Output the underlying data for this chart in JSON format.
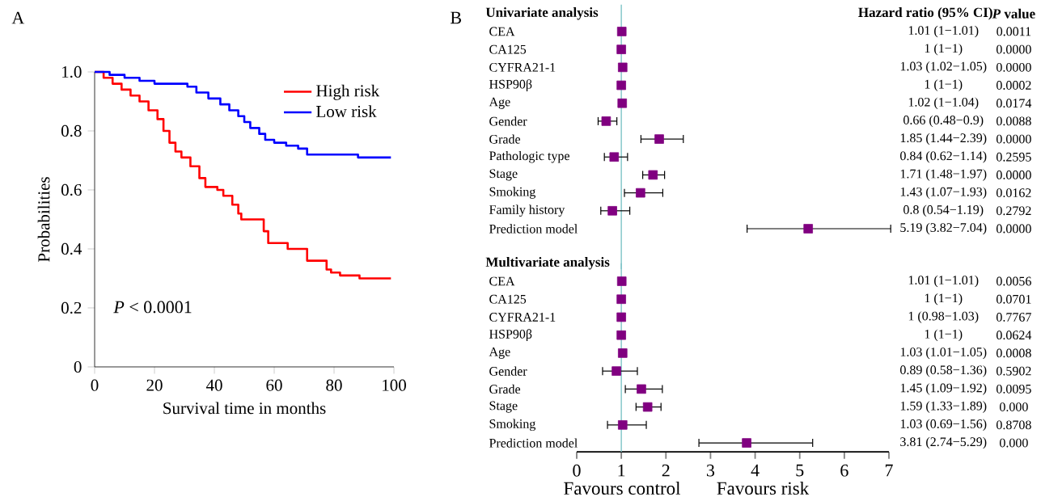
{
  "chart_data": [
    {
      "type": "step",
      "xlabel": "Survival time in months",
      "ylabel": "Probabilities",
      "legend": "top right",
      "marker": "none",
      "line_style": "solid",
      "xlim": [
        0,
        100
      ],
      "ylim": [
        0,
        1
      ],
      "xticks": [
        0,
        20,
        40,
        60,
        80,
        100
      ],
      "yticks": [
        0,
        0.2,
        0.4,
        0.6,
        0.8,
        {
          "value": 1,
          "label": "1.0"
        }
      ],
      "annotations": [
        "A",
        "*P* < 0.0001"
      ],
      "series": [
        {
          "name": "High risk",
          "color": "#ff0000",
          "x": [
            0,
            3,
            6,
            9,
            12,
            15,
            18,
            21,
            23,
            25,
            27,
            29,
            32,
            35,
            37,
            41,
            43,
            46,
            48,
            49,
            56.5,
            58,
            64.5,
            71,
            77.5,
            79,
            82,
            88.5,
            99
          ],
          "values": [
            1.0,
            0.98,
            0.96,
            0.94,
            0.92,
            0.9,
            0.87,
            0.84,
            0.8,
            0.76,
            0.73,
            0.71,
            0.68,
            0.64,
            0.61,
            0.6,
            0.58,
            0.55,
            0.52,
            0.5,
            0.46,
            0.42,
            0.4,
            0.36,
            0.33,
            0.32,
            0.31,
            0.3,
            0.3
          ]
        },
        {
          "name": "Low risk",
          "color": "#0000ff",
          "x": [
            0,
            5,
            10,
            15,
            20,
            31,
            34,
            38,
            42,
            45,
            48,
            50,
            52,
            55,
            57,
            60,
            64,
            68,
            71,
            88,
            99
          ],
          "values": [
            1.0,
            0.99,
            0.98,
            0.97,
            0.96,
            0.95,
            0.93,
            0.91,
            0.89,
            0.87,
            0.85,
            0.83,
            0.81,
            0.79,
            0.77,
            0.76,
            0.75,
            0.74,
            0.72,
            0.71,
            0.71
          ]
        }
      ]
    },
    {
      "type": "scatter",
      "orientation": "horizontal",
      "title": "Univariate analysis",
      "marker": "square",
      "color": "#800080",
      "xlim": [
        0,
        7
      ],
      "xticks": [
        0,
        1,
        2,
        3,
        4,
        5,
        6,
        7
      ],
      "tick_labels": "y",
      "categories": [
        "CEA",
        "CA125",
        "CYFRA21-1",
        "HSP90β",
        "Age",
        "Gender",
        "Grade",
        "Pathologic type",
        "Stage",
        "Smoking",
        "Family history",
        "Prediction model"
      ],
      "values": [
        1.01,
        1,
        1.03,
        1,
        1.02,
        0.66,
        1.85,
        0.84,
        1.71,
        1.43,
        0.8,
        5.19
      ],
      "errors": [
        null,
        null,
        null,
        null,
        null,
        [
          0.48,
          0.9
        ],
        [
          1.44,
          2.39
        ],
        [
          0.62,
          1.14
        ],
        [
          1.48,
          1.97
        ],
        [
          1.07,
          1.93
        ],
        [
          0.54,
          1.19
        ],
        [
          3.82,
          7.04
        ]
      ],
      "ref_lines": [
        {
          "axis": "x",
          "value": 1,
          "color": "#7fc4c8"
        }
      ],
      "annotations": [
        "B",
        "Hazard ratio (95% CI)",
        "*P* value",
        "1.01 (1−1.01)",
        "1 (1−1)",
        "1.03 (1.02−1.05)",
        "1 (1−1)",
        "1.02 (1−1.04)",
        "0.66 (0.48−0.9)",
        "1.85 (1.44−2.39)",
        "0.84 (0.62−1.14)",
        "1.71 (1.48−1.97)",
        "1.43 (1.07−1.93)",
        "0.8 (0.54−1.19)",
        "5.19 (3.82−7.04)",
        "0.0011",
        "0.0000",
        "0.0000",
        "0.0002",
        "0.0174",
        "0.0088",
        "0.0000",
        "0.2595",
        "0.0000",
        "0.0162",
        "0.2792",
        "0.0000"
      ]
    },
    {
      "type": "scatter",
      "orientation": "horizontal",
      "title": "Multivariate analysis",
      "marker": "square",
      "color": "#800080",
      "xlim": [
        0,
        7
      ],
      "xticks": [
        0,
        1,
        2,
        3,
        4,
        5,
        6,
        7
      ],
      "categories": [
        "CEA",
        "CA125",
        "CYFRA21-1",
        "HSP90β",
        "Age",
        "Gender",
        "Grade",
        "Stage",
        "Smoking",
        "Prediction model"
      ],
      "values": [
        1.01,
        1,
        1,
        1,
        1.03,
        0.89,
        1.45,
        1.59,
        1.03,
        3.81
      ],
      "errors": [
        null,
        null,
        null,
        null,
        null,
        [
          0.58,
          1.36
        ],
        [
          1.09,
          1.92
        ],
        [
          1.33,
          1.89
        ],
        [
          0.69,
          1.56
        ],
        [
          2.74,
          5.29
        ]
      ],
      "ref_lines": [
        {
          "axis": "x",
          "value": 1,
          "color": "#7fc4c8"
        }
      ],
      "annotations": [
        "Favours control",
        "Favours risk",
        "1.01 (1−1.01)",
        "1 (1−1)",
        "1 (0.98−1.03)",
        "1 (1−1)",
        "1.03 (1.01−1.05)",
        "0.89 (0.58−1.36)",
        "1.45 (1.09−1.92)",
        "1.59 (1.33−1.89)",
        "1.03 (0.69−1.56)",
        "3.81 (2.74−5.29)",
        "0.0056",
        "0.0701",
        "0.7767",
        "0.0624",
        "0.0008",
        "0.5902",
        "0.0095",
        "0.000",
        "0.8708",
        "0.000"
      ]
    }
  ]
}
